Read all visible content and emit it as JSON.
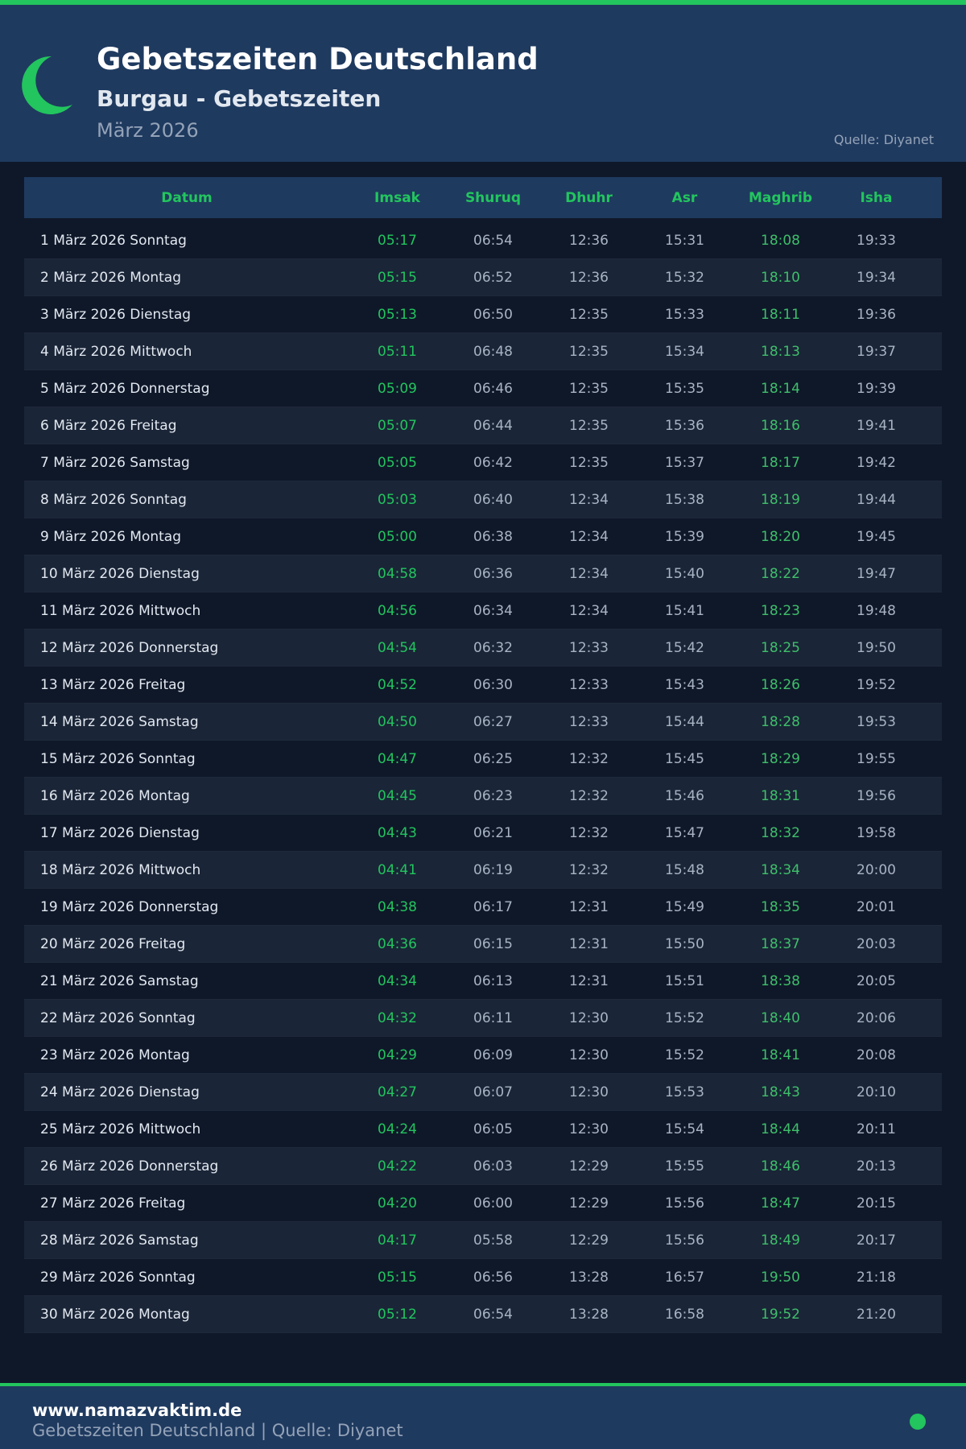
{
  "header": {
    "title": "Gebetszeiten Deutschland",
    "subtitle": "Burgau - Gebetszeiten",
    "month": "März 2026",
    "source": "Quelle: Diyanet"
  },
  "colors": {
    "accent": "#22c55e",
    "header_bg": "#1f3a5f",
    "page_bg": "#0f1829"
  },
  "table": {
    "columns": [
      "Datum",
      "Imsak",
      "Shuruq",
      "Dhuhr",
      "Asr",
      "Maghrib",
      "Isha"
    ],
    "rows": [
      [
        "1 März 2026 Sonntag",
        "05:17",
        "06:54",
        "12:36",
        "15:31",
        "18:08",
        "19:33"
      ],
      [
        "2 März 2026 Montag",
        "05:15",
        "06:52",
        "12:36",
        "15:32",
        "18:10",
        "19:34"
      ],
      [
        "3 März 2026 Dienstag",
        "05:13",
        "06:50",
        "12:35",
        "15:33",
        "18:11",
        "19:36"
      ],
      [
        "4 März 2026 Mittwoch",
        "05:11",
        "06:48",
        "12:35",
        "15:34",
        "18:13",
        "19:37"
      ],
      [
        "5 März 2026 Donnerstag",
        "05:09",
        "06:46",
        "12:35",
        "15:35",
        "18:14",
        "19:39"
      ],
      [
        "6 März 2026 Freitag",
        "05:07",
        "06:44",
        "12:35",
        "15:36",
        "18:16",
        "19:41"
      ],
      [
        "7 März 2026 Samstag",
        "05:05",
        "06:42",
        "12:35",
        "15:37",
        "18:17",
        "19:42"
      ],
      [
        "8 März 2026 Sonntag",
        "05:03",
        "06:40",
        "12:34",
        "15:38",
        "18:19",
        "19:44"
      ],
      [
        "9 März 2026 Montag",
        "05:00",
        "06:38",
        "12:34",
        "15:39",
        "18:20",
        "19:45"
      ],
      [
        "10 März 2026 Dienstag",
        "04:58",
        "06:36",
        "12:34",
        "15:40",
        "18:22",
        "19:47"
      ],
      [
        "11 März 2026 Mittwoch",
        "04:56",
        "06:34",
        "12:34",
        "15:41",
        "18:23",
        "19:48"
      ],
      [
        "12 März 2026 Donnerstag",
        "04:54",
        "06:32",
        "12:33",
        "15:42",
        "18:25",
        "19:50"
      ],
      [
        "13 März 2026 Freitag",
        "04:52",
        "06:30",
        "12:33",
        "15:43",
        "18:26",
        "19:52"
      ],
      [
        "14 März 2026 Samstag",
        "04:50",
        "06:27",
        "12:33",
        "15:44",
        "18:28",
        "19:53"
      ],
      [
        "15 März 2026 Sonntag",
        "04:47",
        "06:25",
        "12:32",
        "15:45",
        "18:29",
        "19:55"
      ],
      [
        "16 März 2026 Montag",
        "04:45",
        "06:23",
        "12:32",
        "15:46",
        "18:31",
        "19:56"
      ],
      [
        "17 März 2026 Dienstag",
        "04:43",
        "06:21",
        "12:32",
        "15:47",
        "18:32",
        "19:58"
      ],
      [
        "18 März 2026 Mittwoch",
        "04:41",
        "06:19",
        "12:32",
        "15:48",
        "18:34",
        "20:00"
      ],
      [
        "19 März 2026 Donnerstag",
        "04:38",
        "06:17",
        "12:31",
        "15:49",
        "18:35",
        "20:01"
      ],
      [
        "20 März 2026 Freitag",
        "04:36",
        "06:15",
        "12:31",
        "15:50",
        "18:37",
        "20:03"
      ],
      [
        "21 März 2026 Samstag",
        "04:34",
        "06:13",
        "12:31",
        "15:51",
        "18:38",
        "20:05"
      ],
      [
        "22 März 2026 Sonntag",
        "04:32",
        "06:11",
        "12:30",
        "15:52",
        "18:40",
        "20:06"
      ],
      [
        "23 März 2026 Montag",
        "04:29",
        "06:09",
        "12:30",
        "15:52",
        "18:41",
        "20:08"
      ],
      [
        "24 März 2026 Dienstag",
        "04:27",
        "06:07",
        "12:30",
        "15:53",
        "18:43",
        "20:10"
      ],
      [
        "25 März 2026 Mittwoch",
        "04:24",
        "06:05",
        "12:30",
        "15:54",
        "18:44",
        "20:11"
      ],
      [
        "26 März 2026 Donnerstag",
        "04:22",
        "06:03",
        "12:29",
        "15:55",
        "18:46",
        "20:13"
      ],
      [
        "27 März 2026 Freitag",
        "04:20",
        "06:00",
        "12:29",
        "15:56",
        "18:47",
        "20:15"
      ],
      [
        "28 März 2026 Samstag",
        "04:17",
        "05:58",
        "12:29",
        "15:56",
        "18:49",
        "20:17"
      ],
      [
        "29 März 2026 Sonntag",
        "05:15",
        "06:56",
        "13:28",
        "16:57",
        "19:50",
        "21:18"
      ],
      [
        "30 März 2026 Montag",
        "05:12",
        "06:54",
        "13:28",
        "16:58",
        "19:52",
        "21:20"
      ]
    ]
  },
  "footer": {
    "site": "www.namazvaktim.de",
    "text": "Gebetszeiten Deutschland | Quelle: Diyanet"
  }
}
